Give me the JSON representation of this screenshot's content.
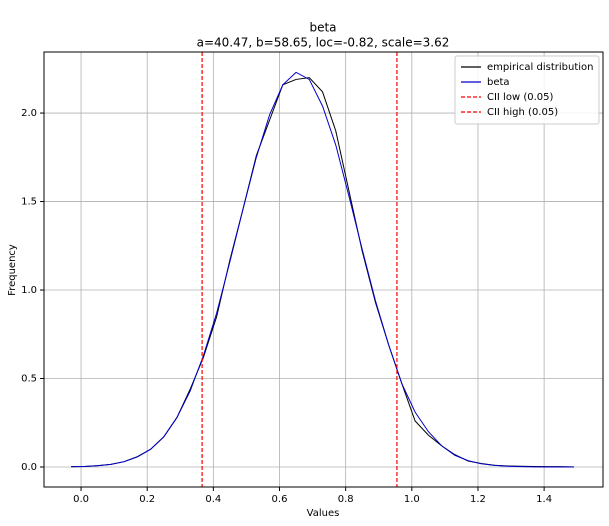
{
  "chart_data": {
    "type": "line",
    "title": "beta",
    "subtitle": "a=40.47, b=58.65, loc=-0.82, scale=3.62",
    "xlabel": "Values",
    "ylabel": "Frequency",
    "x": [
      -0.03,
      0.01,
      0.05,
      0.09,
      0.13,
      0.17,
      0.21,
      0.25,
      0.29,
      0.33,
      0.37,
      0.41,
      0.45,
      0.49,
      0.53,
      0.57,
      0.61,
      0.65,
      0.69,
      0.73,
      0.77,
      0.81,
      0.85,
      0.89,
      0.93,
      0.97,
      1.01,
      1.05,
      1.09,
      1.13,
      1.17,
      1.21,
      1.25,
      1.29,
      1.33,
      1.37,
      1.41,
      1.45,
      1.49
    ],
    "series": [
      {
        "name": "empirical distribution",
        "color": "#000000",
        "values": [
          0.002,
          0.003,
          0.008,
          0.015,
          0.03,
          0.058,
          0.1,
          0.17,
          0.28,
          0.44,
          0.62,
          0.85,
          1.17,
          1.46,
          1.76,
          1.96,
          2.16,
          2.19,
          2.2,
          2.12,
          1.9,
          1.56,
          1.22,
          0.93,
          0.69,
          0.47,
          0.26,
          0.18,
          0.12,
          0.07,
          0.034,
          0.02,
          0.01,
          0.006,
          0.004,
          0.003,
          0.002,
          0.002,
          0.001
        ]
      },
      {
        "name": "beta",
        "color": "#0000cc",
        "values": [
          0.0015,
          0.003,
          0.007,
          0.015,
          0.03,
          0.057,
          0.1,
          0.17,
          0.28,
          0.43,
          0.63,
          0.87,
          1.16,
          1.46,
          1.75,
          1.99,
          2.16,
          2.23,
          2.19,
          2.04,
          1.82,
          1.53,
          1.23,
          0.94,
          0.69,
          0.47,
          0.31,
          0.2,
          0.12,
          0.066,
          0.036,
          0.018,
          0.009,
          0.004,
          0.002,
          0.001,
          0,
          0,
          0
        ]
      }
    ],
    "vlines": [
      {
        "name": "CII low (0.05)",
        "x": 0.366,
        "color": "#ff0000"
      },
      {
        "name": "CII high (0.05)",
        "x": 0.955,
        "color": "#ff0000"
      }
    ],
    "xlim": [
      -0.112,
      1.578
    ],
    "ylim": [
      -0.113,
      2.345
    ],
    "xticks": [
      {
        "value": 0,
        "label": "0.0"
      },
      0.2,
      0.4,
      0.6,
      0.8,
      {
        "value": 1,
        "label": "1.0"
      },
      1.2,
      1.4
    ],
    "yticks": [
      {
        "value": 0,
        "label": "0.0"
      },
      0.5,
      {
        "value": 1,
        "label": "1.0"
      },
      1.5,
      {
        "value": 2,
        "label": "2.0"
      }
    ],
    "grid": true,
    "legend": "upper right"
  }
}
